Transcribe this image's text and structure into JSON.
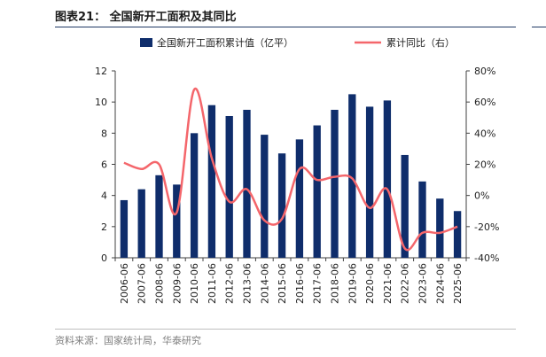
{
  "header": {
    "title": "图表21：  全国新开工面积及其同比",
    "source": "资料来源：国家统计局，华泰研究"
  },
  "colors": {
    "bar": "#0f2d6b",
    "line": "#f4666b",
    "axis": "#404040",
    "text": "#222222"
  },
  "chart_data": {
    "type": "bar",
    "title": "全国新开工面积及其同比",
    "categories": [
      "2006-06",
      "2007-06",
      "2008-06",
      "2009-06",
      "2010-06",
      "2011-06",
      "2012-06",
      "2013-06",
      "2014-06",
      "2015-06",
      "2016-06",
      "2017-06",
      "2018-06",
      "2019-06",
      "2020-06",
      "2021-06",
      "2022-06",
      "2023-06",
      "2024-06",
      "2025-06"
    ],
    "series": [
      {
        "name": "全国新开工面积累计值（亿平）",
        "type": "bar",
        "axis": "left",
        "values": [
          3.7,
          4.4,
          5.3,
          4.7,
          8.0,
          9.8,
          9.1,
          9.5,
          7.9,
          6.7,
          7.6,
          8.5,
          9.5,
          10.5,
          9.7,
          10.1,
          6.6,
          4.9,
          3.8,
          3.0
        ]
      },
      {
        "name": "累计同比（右）",
        "type": "line",
        "axis": "right",
        "values": [
          21,
          17,
          20,
          -11,
          68,
          24,
          -4,
          4,
          -16,
          -15,
          17,
          10,
          12,
          11,
          -8,
          4,
          -34,
          -24,
          -24,
          -20
        ]
      }
    ],
    "left_axis": {
      "min": 0,
      "max": 12,
      "ticks": [
        0,
        2,
        4,
        6,
        8,
        10,
        12
      ]
    },
    "right_axis": {
      "min": -40,
      "max": 80,
      "ticks": [
        -40,
        -20,
        0,
        20,
        40,
        60,
        80
      ],
      "tick_labels": [
        "-40%",
        "-20%",
        "0%",
        "20%",
        "40%",
        "60%",
        "80%"
      ]
    },
    "legend": {
      "placement": "top"
    },
    "grid": false
  }
}
